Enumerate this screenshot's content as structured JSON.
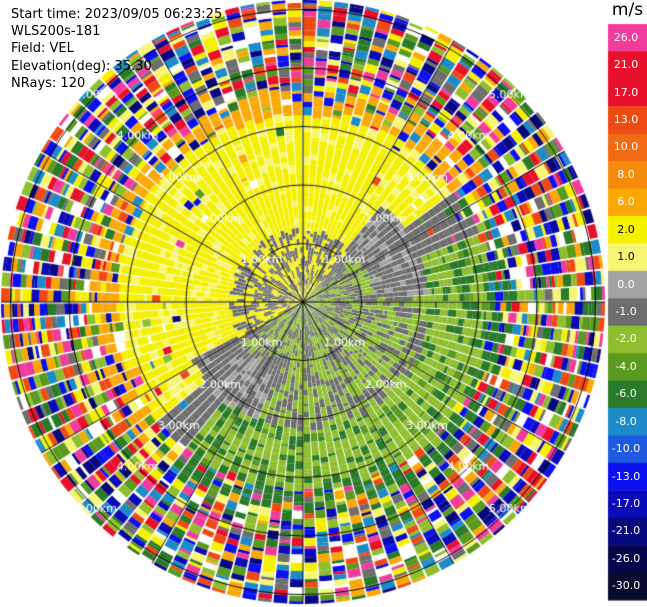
{
  "header": {
    "start_time": "Start time: 2023/09/05 06:23:25",
    "instrument": "WLS200s-181",
    "field": "Field: VEL",
    "elevation": "Elevation(deg): 35.30",
    "nrays": "NRays: 120"
  },
  "colorbar": {
    "unit": "m/s",
    "entries": [
      {
        "label": "26.0",
        "color": "#f03c9c"
      },
      {
        "label": "21.0",
        "color": "#e8102a"
      },
      {
        "label": "17.0",
        "color": "#e8102a"
      },
      {
        "label": "13.0",
        "color": "#f04a14"
      },
      {
        "label": "10.0",
        "color": "#f26a12"
      },
      {
        "label": "8.0",
        "color": "#f68a0c"
      },
      {
        "label": "6.0",
        "color": "#faa806"
      },
      {
        "label": "2.0",
        "color": "#f5f000"
      },
      {
        "label": "1.0",
        "color": "#f7f574"
      },
      {
        "label": "0.0",
        "color": "#a3a3a3"
      },
      {
        "label": "-1.0",
        "color": "#6e6e6e"
      },
      {
        "label": "-2.0",
        "color": "#8fbf30"
      },
      {
        "label": "-4.0",
        "color": "#5a9a1e"
      },
      {
        "label": "-6.0",
        "color": "#2a7a2a"
      },
      {
        "label": "-8.0",
        "color": "#1e8ac8"
      },
      {
        "label": "-10.0",
        "color": "#1e5ae0"
      },
      {
        "label": "-13.0",
        "color": "#0a10f0"
      },
      {
        "label": "-17.0",
        "color": "#0a0ab8"
      },
      {
        "label": "-21.0",
        "color": "#08087e"
      },
      {
        "label": "-26.0",
        "color": "#06064a"
      },
      {
        "label": "-30.0",
        "color": "#0a0a2e"
      }
    ]
  },
  "range_labels": [
    "1.00km",
    "2.00km",
    "3.00km",
    "4.00km",
    "5.00km"
  ],
  "palette": {
    "noise": [
      "#f03c9c",
      "#e8102a",
      "#f5f000",
      "#0a10f0",
      "#08087e",
      "#faa806",
      "#1e8ac8",
      "#2a7a2a",
      "#8fbf30",
      "#ffffff",
      "#f04a14",
      "#5a9a1e",
      "#0a0ab8",
      "#6e6e6e",
      "#f7f574"
    ]
  }
}
